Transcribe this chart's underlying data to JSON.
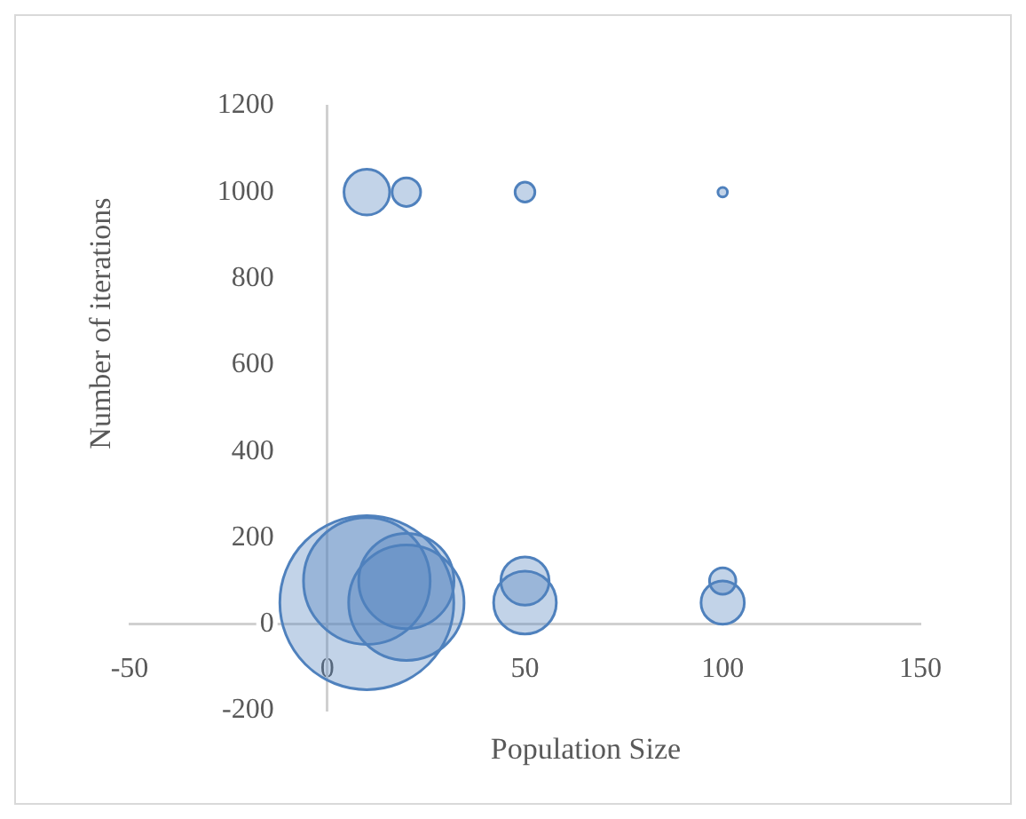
{
  "chart_data": {
    "type": "bubble",
    "xlabel": "Population Size",
    "ylabel": "Number of iterations",
    "x": [
      10,
      20,
      50,
      100,
      10,
      10,
      20,
      20,
      50,
      50,
      100,
      100
    ],
    "values": [
      1000,
      1000,
      1000,
      1000,
      50,
      100,
      50,
      100,
      50,
      100,
      50,
      100
    ],
    "sizes": [
      0.069,
      0.027,
      0.013,
      0.003,
      1,
      0.53,
      0.44,
      0.3,
      0.13,
      0.077,
      0.062,
      0.023
    ],
    "color": "#4f81bd",
    "xlim": [
      -50,
      150
    ],
    "xticks": [
      -50,
      0,
      50,
      100,
      150
    ],
    "ylim": [
      -200,
      1200
    ],
    "yticks": [
      -200,
      0,
      200,
      400,
      600,
      800,
      1000,
      1200
    ],
    "grid": false,
    "legend": false
  }
}
